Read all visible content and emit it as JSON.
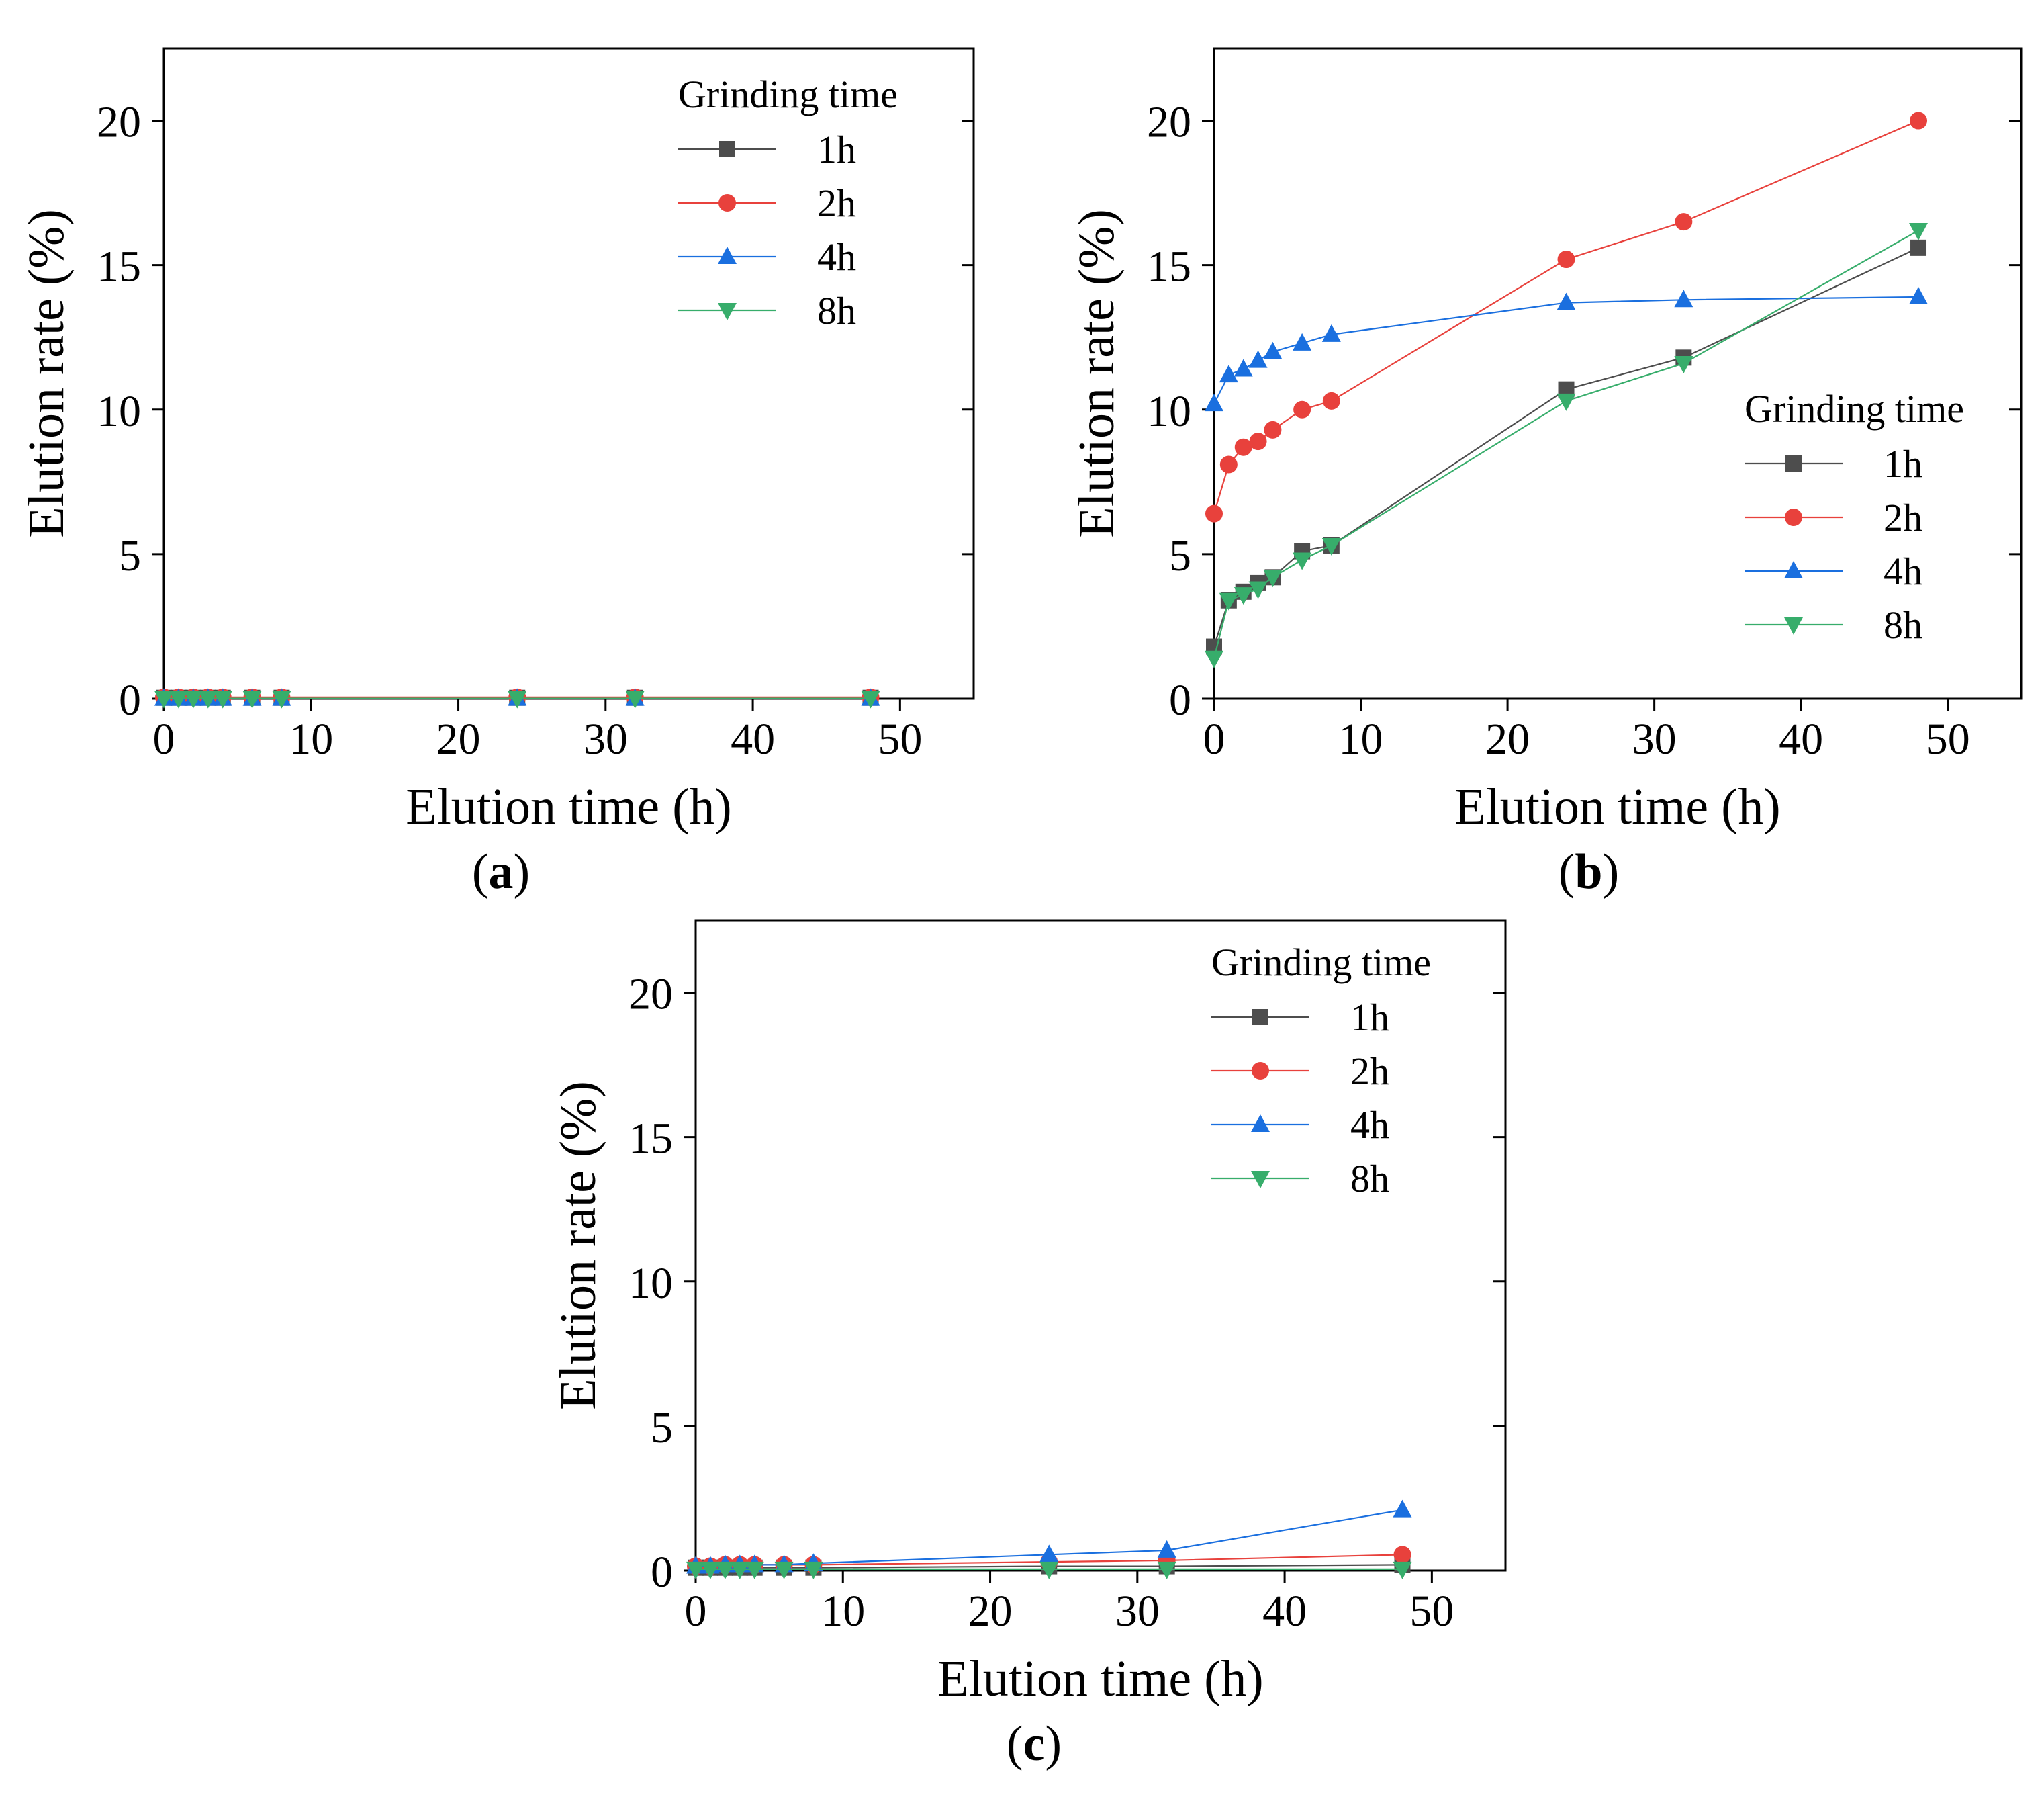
{
  "chart_data": [
    {
      "type": "line",
      "panel_label": "a",
      "title": "",
      "xlabel": "Elution time (h)",
      "ylabel": "Elution rate (%)",
      "xlim": [
        0,
        55
      ],
      "ylim": [
        0,
        22.5
      ],
      "xticks": [
        0,
        10,
        20,
        30,
        40,
        50
      ],
      "yticks": [
        0,
        5,
        10,
        15,
        20
      ],
      "legend_title": "Grinding time",
      "legend_position": "top-right",
      "x": [
        0,
        1,
        2,
        3,
        4,
        6,
        8,
        24,
        32,
        48
      ],
      "series": [
        {
          "name": "1h",
          "marker": "square",
          "color": "#4d4d4d",
          "values": [
            0.03,
            0.03,
            0.03,
            0.03,
            0.03,
            0.03,
            0.03,
            0.03,
            0.03,
            0.03
          ]
        },
        {
          "name": "2h",
          "marker": "circle",
          "color": "#e8413c",
          "values": [
            0.05,
            0.05,
            0.05,
            0.05,
            0.05,
            0.05,
            0.05,
            0.05,
            0.05,
            0.05
          ]
        },
        {
          "name": "4h",
          "marker": "triangle-up",
          "color": "#1a6fdf",
          "values": [
            0.01,
            0.01,
            0.01,
            0.01,
            0.01,
            0.01,
            0.01,
            0.01,
            0.01,
            0.01
          ]
        },
        {
          "name": "8h",
          "marker": "triangle-down",
          "color": "#37ad6b",
          "values": [
            0.01,
            0.01,
            0.01,
            0.01,
            0.01,
            0.01,
            0.01,
            0.01,
            0.01,
            0.01
          ]
        }
      ]
    },
    {
      "type": "line",
      "panel_label": "b",
      "title": "",
      "xlabel": "Elution time (h)",
      "ylabel": "Elution rate (%)",
      "xlim": [
        0,
        55
      ],
      "ylim": [
        0,
        22.5
      ],
      "xticks": [
        0,
        10,
        20,
        30,
        40,
        50
      ],
      "yticks": [
        0,
        5,
        10,
        15,
        20
      ],
      "legend_title": "Grinding time",
      "legend_position": "right",
      "x": [
        0,
        1,
        2,
        3,
        4,
        6,
        8,
        24,
        32,
        48
      ],
      "series": [
        {
          "name": "1h",
          "marker": "square",
          "color": "#4d4d4d",
          "values": [
            1.8,
            3.4,
            3.7,
            4.0,
            4.2,
            5.1,
            5.3,
            10.7,
            11.8,
            15.6
          ]
        },
        {
          "name": "2h",
          "marker": "circle",
          "color": "#e8413c",
          "values": [
            6.4,
            8.1,
            8.7,
            8.9,
            9.3,
            10.0,
            10.3,
            15.2,
            16.5,
            20.0
          ]
        },
        {
          "name": "4h",
          "marker": "triangle-up",
          "color": "#1a6fdf",
          "values": [
            10.2,
            11.2,
            11.4,
            11.7,
            12.0,
            12.3,
            12.6,
            13.7,
            13.8,
            13.9
          ]
        },
        {
          "name": "8h",
          "marker": "triangle-down",
          "color": "#37ad6b",
          "values": [
            1.4,
            3.4,
            3.6,
            3.8,
            4.2,
            4.8,
            5.3,
            10.3,
            11.6,
            16.2
          ]
        }
      ]
    },
    {
      "type": "line",
      "panel_label": "c",
      "title": "",
      "xlabel": "Elution time (h)",
      "ylabel": "Elution rate (%)",
      "xlim": [
        0,
        55
      ],
      "ylim": [
        0,
        22.5
      ],
      "xticks": [
        0,
        10,
        20,
        30,
        40,
        50
      ],
      "yticks": [
        0,
        5,
        10,
        15,
        20
      ],
      "legend_title": "Grinding time",
      "legend_position": "top-right",
      "x": [
        0,
        1,
        2,
        3,
        4,
        6,
        8,
        24,
        32,
        48
      ],
      "series": [
        {
          "name": "1h",
          "marker": "square",
          "color": "#4d4d4d",
          "values": [
            0.1,
            0.1,
            0.1,
            0.1,
            0.1,
            0.1,
            0.1,
            0.15,
            0.15,
            0.2
          ]
        },
        {
          "name": "2h",
          "marker": "circle",
          "color": "#e8413c",
          "values": [
            0.15,
            0.15,
            0.2,
            0.2,
            0.2,
            0.2,
            0.2,
            0.3,
            0.35,
            0.55
          ]
        },
        {
          "name": "4h",
          "marker": "triangle-up",
          "color": "#1a6fdf",
          "values": [
            0.15,
            0.15,
            0.2,
            0.2,
            0.2,
            0.2,
            0.25,
            0.55,
            0.7,
            2.1
          ]
        },
        {
          "name": "8h",
          "marker": "triangle-down",
          "color": "#37ad6b",
          "values": [
            0.05,
            0.05,
            0.05,
            0.05,
            0.05,
            0.05,
            0.05,
            0.05,
            0.05,
            0.05
          ]
        }
      ]
    }
  ]
}
